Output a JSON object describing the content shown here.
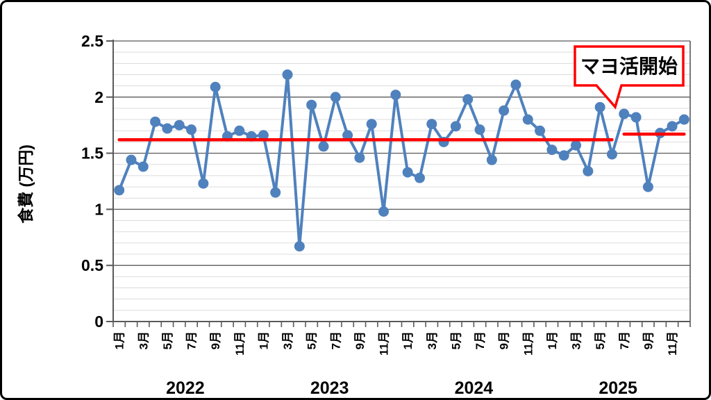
{
  "page": {
    "background": "#FFFFFF",
    "frame_border_color": "#000000"
  },
  "chart_data": {
    "type": "line",
    "title": "",
    "xlabel": "",
    "ylabel": "食費 (万円)",
    "ylim": [
      0,
      2.5
    ],
    "y_tick_labels": [
      "0",
      "0.5",
      "1",
      "1.5",
      "2",
      "2.5"
    ],
    "y_major_step": 0.5,
    "y_minor_step": 0.1,
    "grid": "on",
    "legend": "none",
    "series_color": "#4F81BD",
    "reference_color": "#FF0000",
    "month_tick_labels": [
      "1月",
      "3月",
      "5月",
      "7月",
      "9月",
      "11月"
    ],
    "years": [
      {
        "year": "2022",
        "monthly_values": [
          1.17,
          1.44,
          1.38,
          1.78,
          1.72,
          1.75,
          1.71,
          1.23,
          2.09,
          1.65,
          1.7,
          1.65
        ]
      },
      {
        "year": "2023",
        "monthly_values": [
          1.66,
          1.15,
          2.2,
          0.67,
          1.93,
          1.56,
          2.0,
          1.66,
          1.46,
          1.76,
          0.98,
          2.02
        ]
      },
      {
        "year": "2024",
        "monthly_values": [
          1.33,
          1.28,
          1.76,
          1.6,
          1.74,
          1.98,
          1.71,
          1.44,
          1.88,
          2.11,
          1.8,
          1.7
        ]
      },
      {
        "year": "2025",
        "monthly_values": [
          1.53,
          1.48,
          1.57,
          1.34,
          1.91,
          1.49,
          1.85,
          1.82,
          1.2,
          1.68,
          1.74,
          1.8
        ]
      }
    ],
    "reference_lines": [
      {
        "value": 1.62,
        "start_month_index": 0,
        "end_month_index": 41
      },
      {
        "value": 1.67,
        "start_month_index": 42,
        "end_month_index": 47
      }
    ],
    "annotation": {
      "text": "マヨ活開始",
      "points_to": "2025-07"
    }
  }
}
